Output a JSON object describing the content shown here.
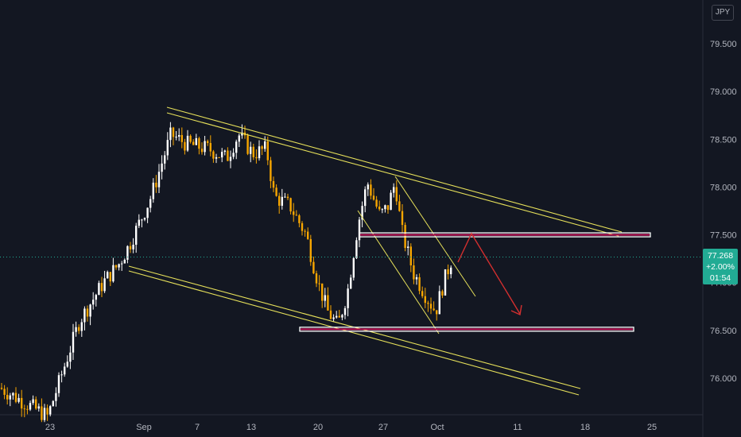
{
  "header": {
    "currency": "JPY"
  },
  "colors": {
    "background": "#131722",
    "candle_up": "#ffffff",
    "candle_down": "#f7a600",
    "trendline": "#e6e05a",
    "zone_border": "#ffffff",
    "zone_edge": "#c2185b",
    "projection_arrow": "#d32f2f",
    "last_price": "#22ab94"
  },
  "price_axis": {
    "ticks": [
      "79.500",
      "79.000",
      "78.500",
      "78.000",
      "77.500",
      "77.000",
      "76.500",
      "76.000"
    ],
    "last_price": "77.268",
    "change": "+2.00%",
    "countdown": "01:54"
  },
  "time_axis": {
    "ticks": [
      "23",
      "Sep",
      "7",
      "13",
      "20",
      "27",
      "Oct",
      "11",
      "18",
      "25"
    ]
  },
  "chart_data": {
    "type": "candlestick",
    "symbol_currency": "JPY",
    "ylim": [
      75.6,
      79.9
    ],
    "y_ticks": [
      76.0,
      76.5,
      77.0,
      77.5,
      78.0,
      78.5,
      79.0,
      79.5
    ],
    "x_ticks": [
      "23",
      "Sep",
      "7",
      "13",
      "20",
      "27",
      "Oct",
      "11",
      "18",
      "25"
    ],
    "last_price": 77.268,
    "price_path": [
      [
        "Aug 19",
        75.9
      ],
      [
        "Aug 23",
        75.6
      ],
      [
        "Aug 27",
        76.6
      ],
      [
        "Aug 31",
        77.2
      ],
      [
        "Sep 1",
        77.4
      ],
      [
        "Sep 3",
        78.0
      ],
      [
        "Sep 5",
        78.55
      ],
      [
        "Sep 7",
        78.4
      ],
      [
        "Sep 9",
        78.3
      ],
      [
        "Sep 11",
        78.5
      ],
      [
        "Sep 13",
        78.3
      ],
      [
        "Sep 15",
        77.9
      ],
      [
        "Sep 17",
        77.8
      ],
      [
        "Sep 19",
        77.2
      ],
      [
        "Sep 21",
        76.7
      ],
      [
        "Sep 22",
        76.55
      ],
      [
        "Sep 23",
        76.9
      ],
      [
        "Sep 24",
        77.9
      ],
      [
        "Sep 25",
        78.05
      ],
      [
        "Sep 27",
        77.7
      ],
      [
        "Sep 28",
        78.05
      ],
      [
        "Sep 29",
        77.5
      ],
      [
        "Oct 1",
        76.9
      ],
      [
        "Oct 1",
        76.8
      ],
      [
        "Oct 2",
        77.0
      ],
      [
        "Oct 3",
        77.27
      ]
    ],
    "support_zone": 76.5,
    "resistance_zone": 77.5,
    "channel_upper": [
      [
        78.75,
        77.5
      ]
    ],
    "channel_lower": [
      [
        77.2,
        75.85
      ]
    ],
    "projection": [
      77.27,
      77.5,
      76.7
    ],
    "grid": false,
    "legend": "none"
  }
}
